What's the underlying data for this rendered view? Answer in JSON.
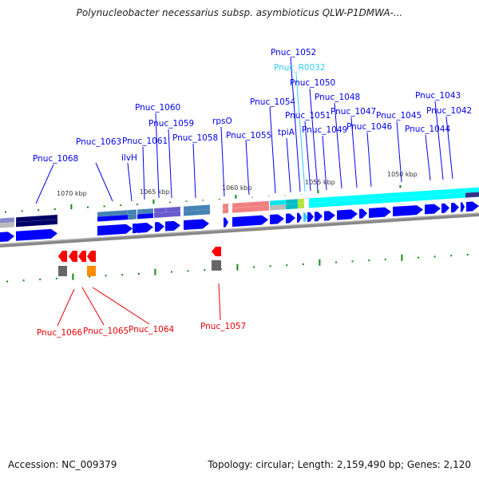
{
  "title": "Polynucleobacter necessarius subsp. asymbioticus QLW-P1DMWA-...",
  "footer": {
    "accession": "Accession: NC_009379",
    "summary": "Topology: circular; Length: 2,159,490 bp; Genes: 2,120"
  },
  "colors": {
    "forward_label": "#0000ee",
    "rna_label": "#33ccff",
    "reverse_label": "#ee0000",
    "forward_gene": "#0000ff",
    "reverse_gene": "#ff0000",
    "tick": "#118811"
  },
  "scale_labels": [
    "1070 kbp",
    "1065 kbp",
    "1060 kbp",
    "1055 kbp",
    "1050 kbp"
  ],
  "forward_labels": [
    "Pnuc_1068",
    "Pnuc_1063",
    "ilvH",
    "Pnuc_1061",
    "Pnuc_1060",
    "Pnuc_1059",
    "Pnuc_1058",
    "rpsO",
    "Pnuc_1055",
    "Pnuc_1054",
    "tpiA",
    "Pnuc_1052",
    "Pnuc_R0032",
    "Pnuc_1050",
    "Pnuc_1051",
    "Pnuc_1048",
    "Pnuc_1049",
    "Pnuc_1047",
    "Pnuc_1046",
    "Pnuc_1045",
    "Pnuc_1044",
    "Pnuc_1043",
    "Pnuc_1042"
  ],
  "reverse_labels": [
    "Pnuc_1066",
    "Pnuc_1065",
    "Pnuc_1064",
    "Pnuc_1057"
  ]
}
